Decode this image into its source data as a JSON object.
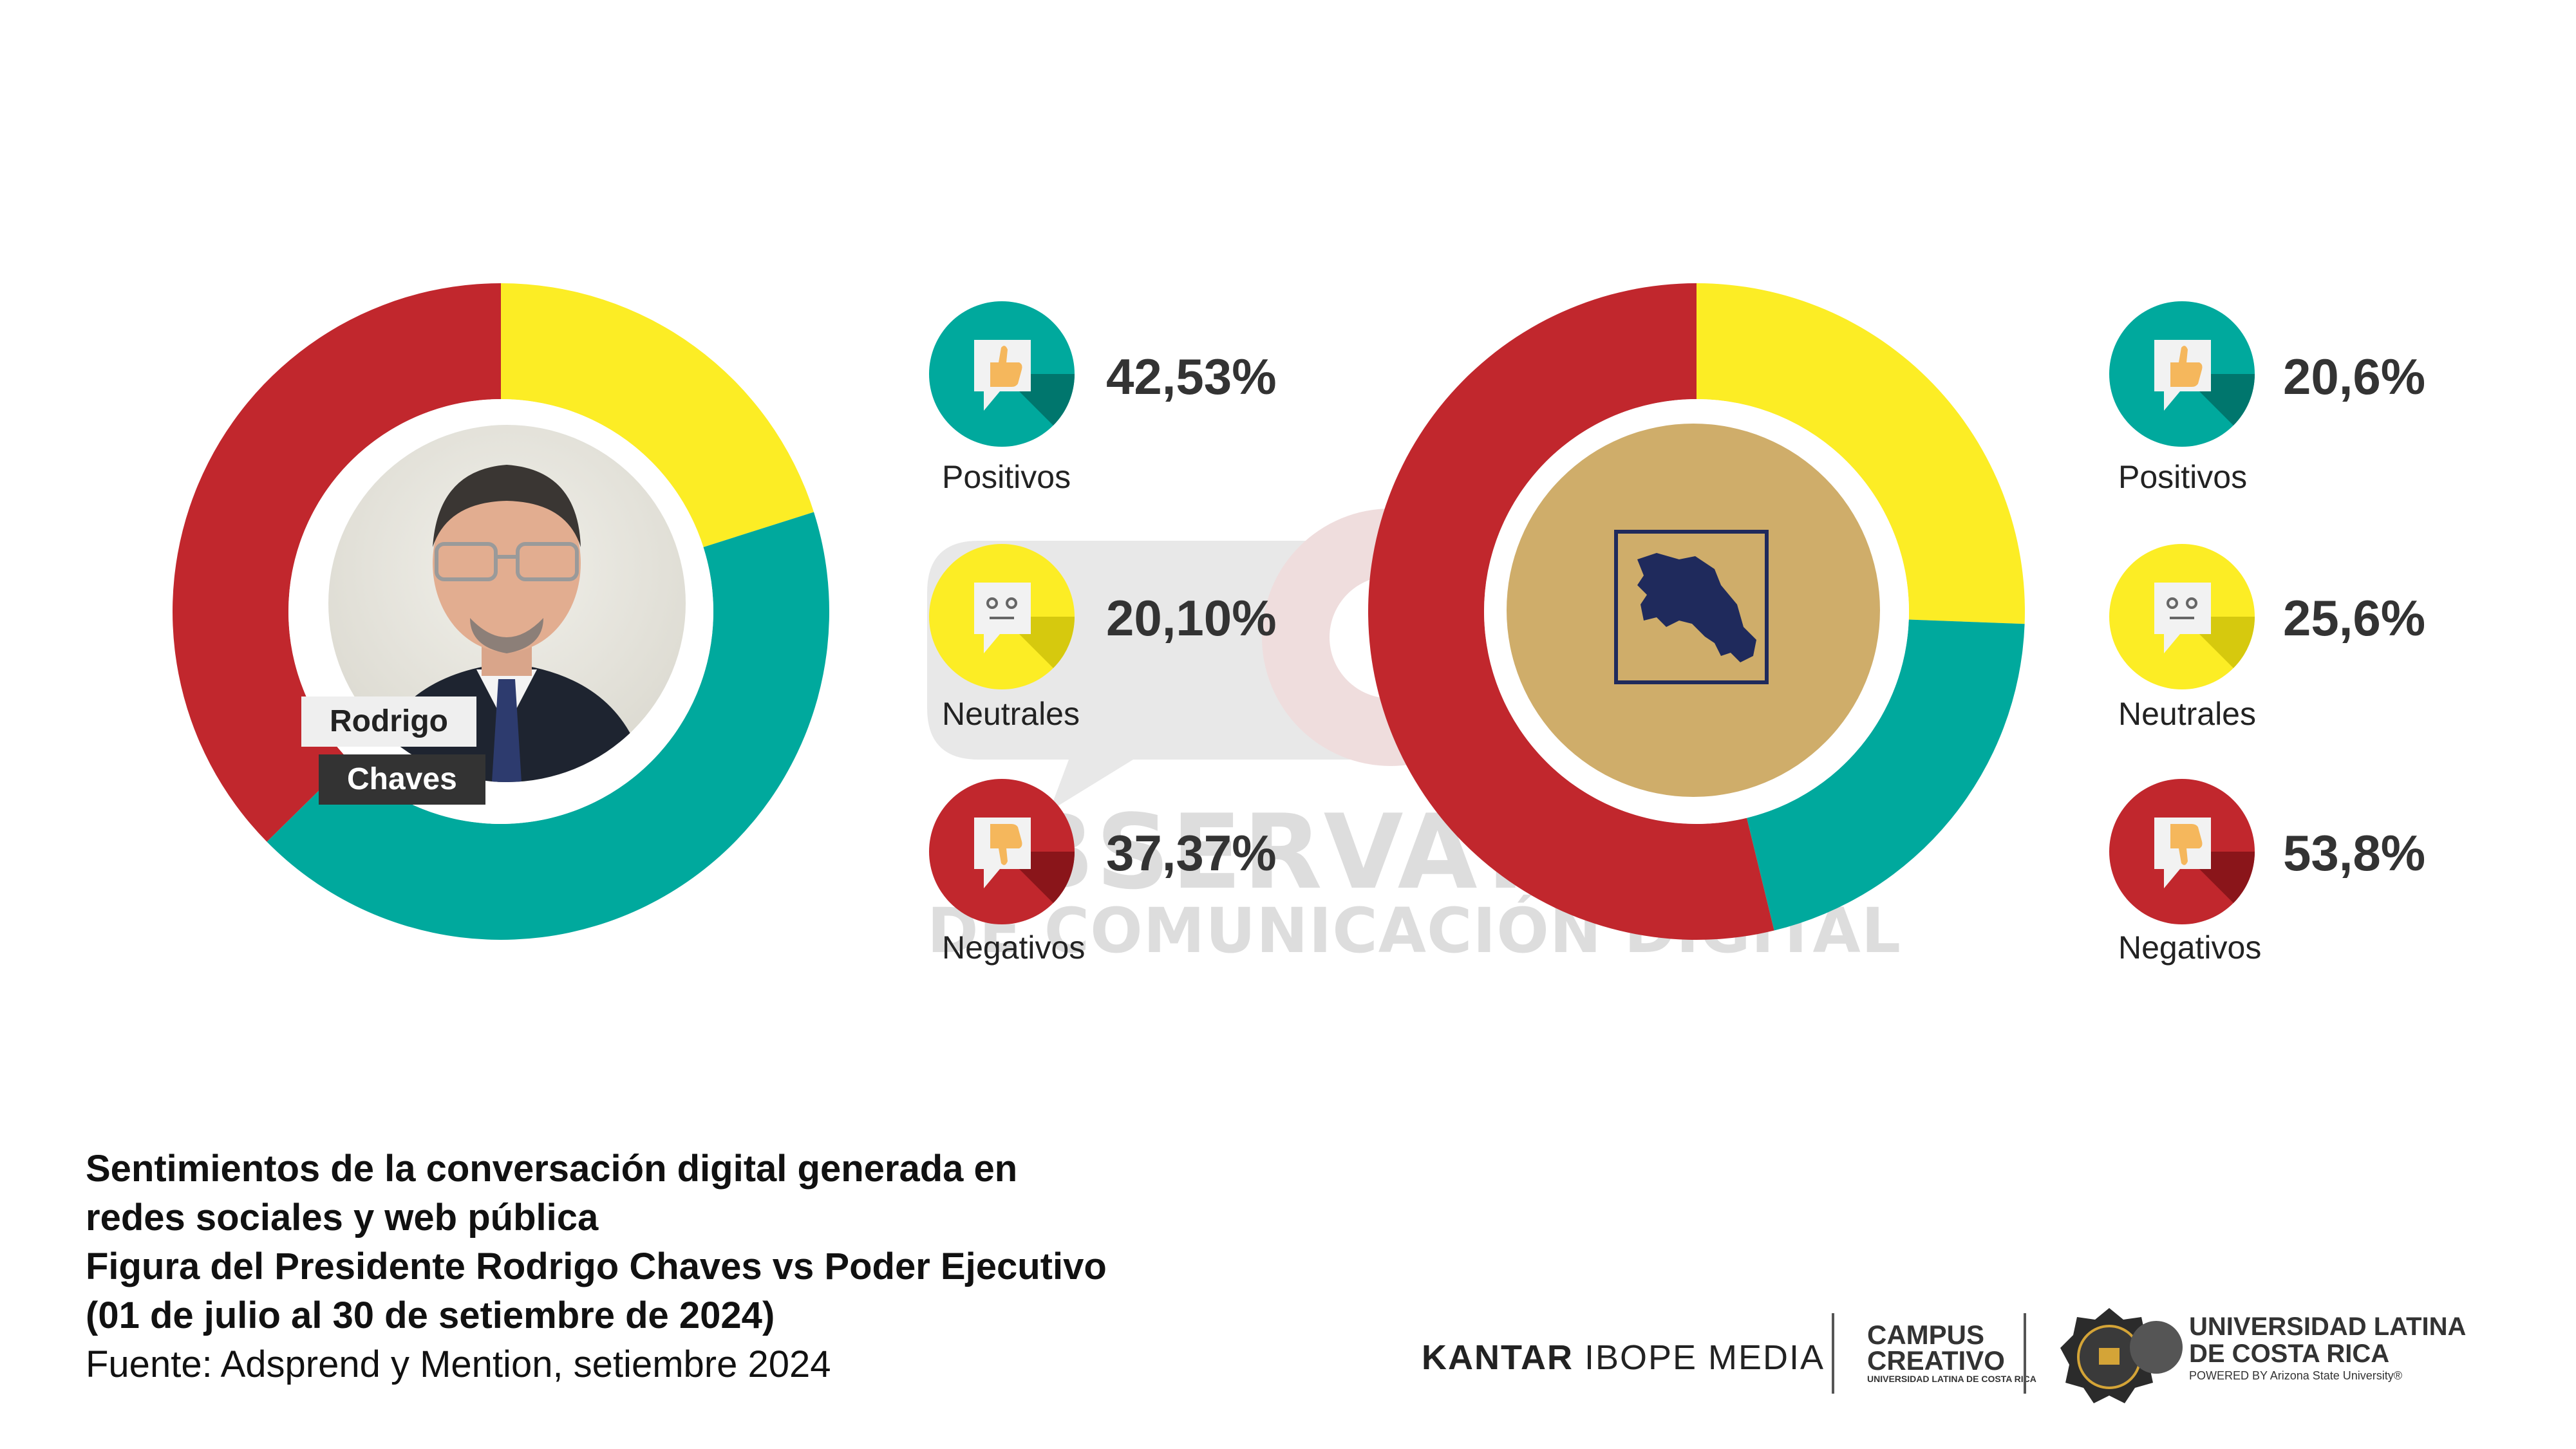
{
  "caption": {
    "line1": "Sentimientos de la conversación digital generada en",
    "line2": "redes sociales y web pública",
    "line3": "Figura del Presidente Rodrigo Chaves vs Poder Ejecutivo",
    "line4": "(01 de julio al 30 de setiembre de 2024)",
    "source": "Fuente: Adsprend y Mention, setiembre 2024"
  },
  "watermark": {
    "line1": "OBSERVATORIO",
    "line2": "DE COMUNICACIÓN DIGITAL"
  },
  "person": {
    "first_name": "Rodrigo",
    "last_name": "Chaves"
  },
  "logos": {
    "kantar_bold": "KANTAR",
    "kantar_rest": " IBOPE MEDIA",
    "campus_line1": "CAMPUS",
    "campus_line2": "CREATIVO",
    "campus_sub": "UNIVERSIDAD LATINA DE COSTA RICA",
    "ulatina_line1": "UNIVERSIDAD LATINA",
    "ulatina_line2": "DE COSTA RICA",
    "ulatina_sub": "POWERED BY Arizona State University®"
  },
  "colors": {
    "positive": "#00a99d",
    "neutral": "#fced25",
    "negative": "#c1272d"
  },
  "icons": {
    "positive": "thumbs-up-icon",
    "neutral": "neutral-face-icon",
    "negative": "thumbs-down-icon"
  },
  "chart_data": [
    {
      "type": "pie",
      "subject": "Rodrigo Chaves",
      "categories": [
        "Positivos",
        "Neutrales",
        "Negativos"
      ],
      "values": [
        42.53,
        20.1,
        37.37
      ],
      "labels": [
        "42,53%",
        "20,10%",
        "37,37%"
      ]
    },
    {
      "type": "pie",
      "subject": "Poder Ejecutivo",
      "categories": [
        "Positivos",
        "Neutrales",
        "Negativos"
      ],
      "values": [
        20.6,
        25.6,
        53.8
      ],
      "labels": [
        "20,6%",
        "25,6%",
        "53,8%"
      ]
    }
  ]
}
